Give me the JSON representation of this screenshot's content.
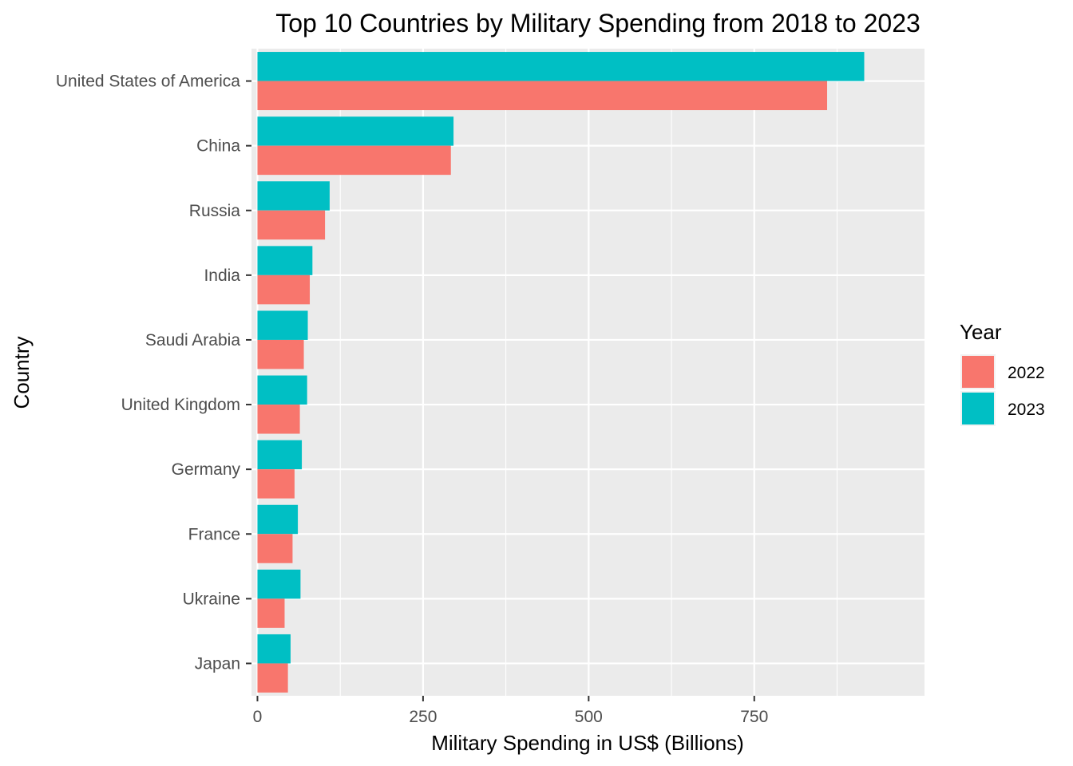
{
  "chart_data": {
    "type": "bar",
    "orientation": "horizontal",
    "title": "Top 10 Countries by Military Spending from 2018 to 2023",
    "xlabel": "Military Spending in US$ (Billions)",
    "ylabel": "Country",
    "xlim": [
      -9,
      1007
    ],
    "xticks": [
      0,
      250,
      500,
      750
    ],
    "xtick_labels": [
      "0",
      "250",
      "500",
      "750"
    ],
    "grid": true,
    "panel_background": "#EBEBEB",
    "legend": {
      "title": "Year",
      "position": "right",
      "entries": [
        {
          "label": "2022",
          "color": "#F8766D"
        },
        {
          "label": "2023",
          "color": "#00BFC4"
        }
      ]
    },
    "categories": [
      "United States of America",
      "China",
      "Russia",
      "India",
      "Saudi Arabia",
      "United Kingdom",
      "Germany",
      "France",
      "Ukraine",
      "Japan"
    ],
    "series": [
      {
        "name": "2022",
        "color": "#F8766D",
        "values": [
          860,
          292,
          102,
          79,
          70,
          64,
          56,
          53,
          41,
          46
        ]
      },
      {
        "name": "2023",
        "color": "#00BFC4",
        "values": [
          916,
          296,
          109,
          83,
          76,
          75,
          67,
          61,
          65,
          50
        ]
      }
    ]
  }
}
